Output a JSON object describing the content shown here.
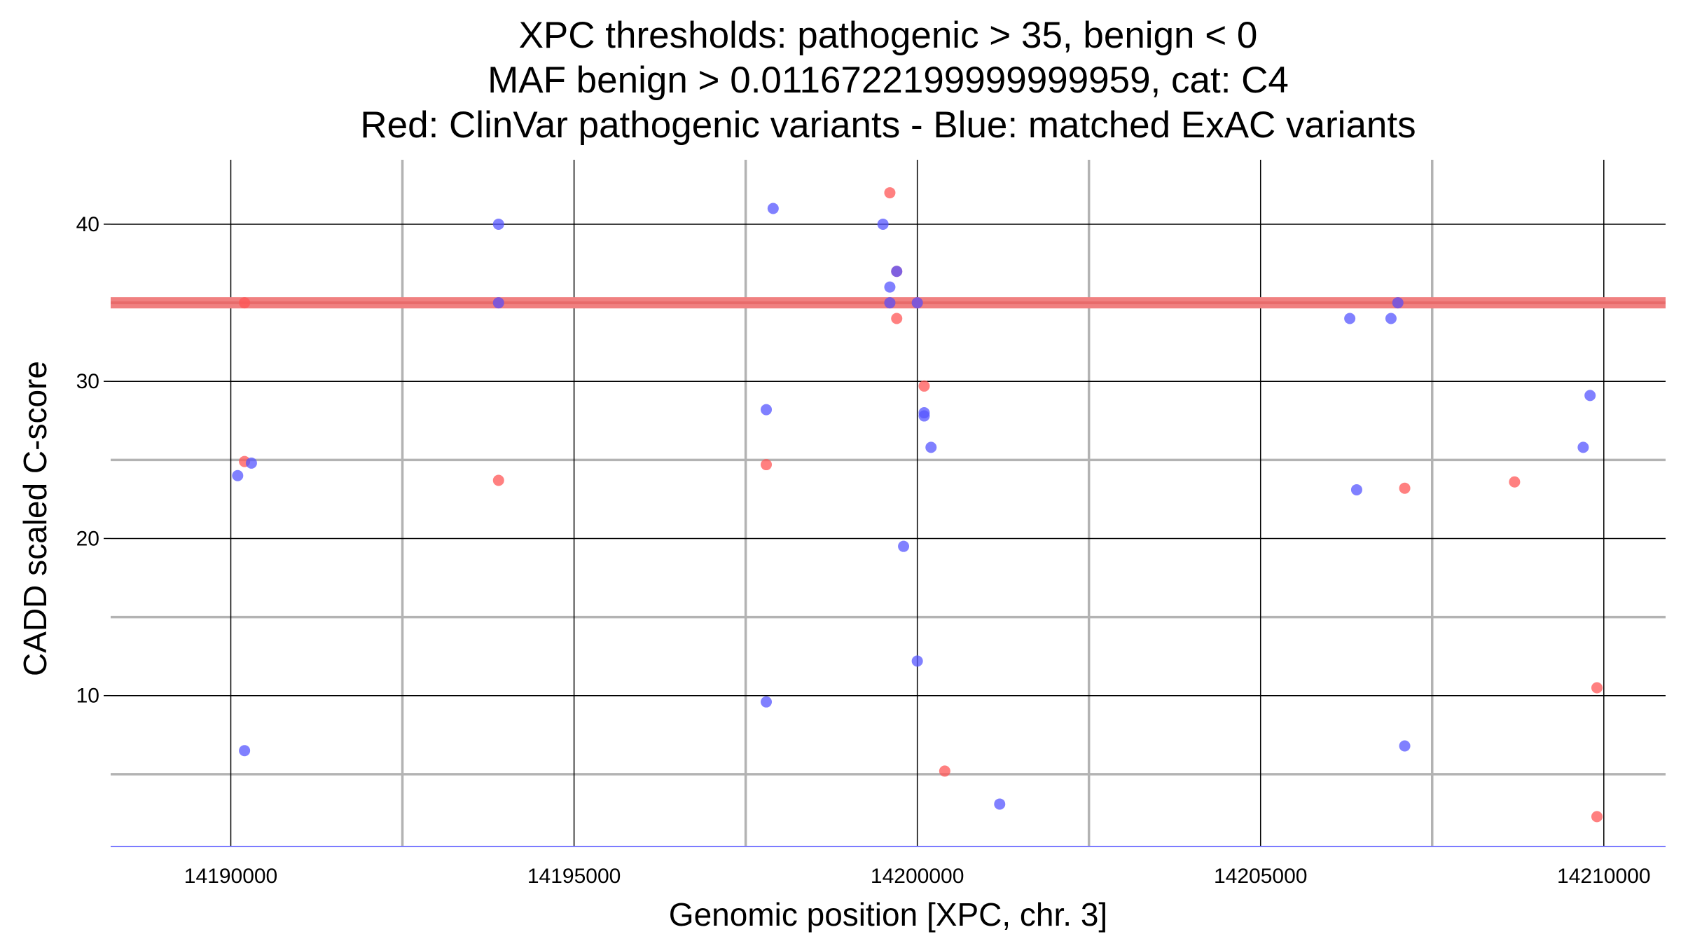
{
  "chart_data": {
    "type": "scatter",
    "title_lines": [
      "XPC thresholds: pathogenic > 35, benign < 0",
      "MAF benign > 0.0116722199999999959, cat: C4",
      "Red: ClinVar pathogenic variants - Blue: matched ExAC variants"
    ],
    "xlabel": "Genomic position [XPC, chr. 3]",
    "ylabel": "CADD scaled C-score",
    "xlim": [
      14188250,
      14210900
    ],
    "ylim": [
      0.4,
      44.1
    ],
    "x_ticks": [
      14190000,
      14195000,
      14200000,
      14205000,
      14210000
    ],
    "x_tick_labels": [
      "14190000",
      "14195000",
      "14200000",
      "14205000",
      "14210000"
    ],
    "x_minor_gridlines": [
      14192500,
      14197500,
      14202500,
      14207500
    ],
    "y_ticks": [
      10,
      20,
      30,
      40
    ],
    "y_tick_labels": [
      "10",
      "20",
      "30",
      "40"
    ],
    "y_minor_gridlines": [
      5,
      15,
      25,
      35
    ],
    "threshold_line": {
      "y": 35,
      "color": "#f08080"
    },
    "baseline_color": "#7b7bff",
    "series": [
      {
        "color": "#ff5555",
        "points": [
          [
            14190200,
            35
          ],
          [
            14190200,
            24.9
          ],
          [
            14193900,
            23.7
          ],
          [
            14193900,
            35
          ],
          [
            14197800,
            24.7
          ],
          [
            14199600,
            42
          ],
          [
            14199700,
            37
          ],
          [
            14199600,
            35
          ],
          [
            14199700,
            34
          ],
          [
            14200000,
            35
          ],
          [
            14200100,
            29.7
          ],
          [
            14200400,
            5.2
          ],
          [
            14207000,
            35
          ],
          [
            14207100,
            23.2
          ],
          [
            14208700,
            23.6
          ],
          [
            14209900,
            10.5
          ],
          [
            14209900,
            2.3
          ]
        ]
      },
      {
        "color": "#5555ff",
        "points": [
          [
            14190100,
            24
          ],
          [
            14190300,
            24.8
          ],
          [
            14190200,
            6.5
          ],
          [
            14193900,
            40
          ],
          [
            14193900,
            35
          ],
          [
            14197900,
            41
          ],
          [
            14197800,
            28.2
          ],
          [
            14197800,
            9.6
          ],
          [
            14199500,
            40
          ],
          [
            14199600,
            36
          ],
          [
            14199600,
            35
          ],
          [
            14199700,
            37
          ],
          [
            14200000,
            35
          ],
          [
            14199800,
            19.5
          ],
          [
            14200000,
            12.2
          ],
          [
            14200100,
            28
          ],
          [
            14200100,
            27.8
          ],
          [
            14200200,
            25.8
          ],
          [
            14201200,
            3.1
          ],
          [
            14206300,
            34
          ],
          [
            14206900,
            34
          ],
          [
            14207000,
            35
          ],
          [
            14206400,
            23.1
          ],
          [
            14207100,
            6.8
          ],
          [
            14209800,
            29.1
          ],
          [
            14209700,
            25.8
          ]
        ]
      }
    ]
  }
}
